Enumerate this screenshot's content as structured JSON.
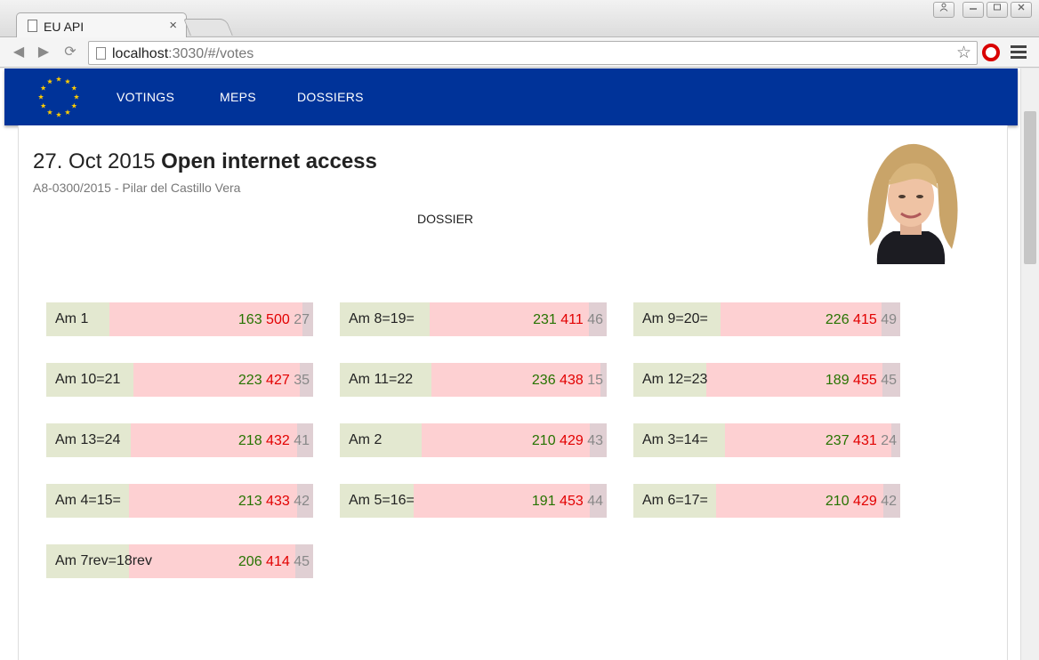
{
  "browser": {
    "tab_title": "EU API",
    "tab_close": "×",
    "url_host": "localhost",
    "url_rest": ":3030/#/votes"
  },
  "nav": {
    "items": [
      "VOTINGS",
      "MEPS",
      "DOSSIERS"
    ]
  },
  "vote": {
    "date": "27. Oct 2015",
    "title": "Open internet access",
    "subtitle": "A8-0300/2015 - Pilar del Castillo Vera",
    "dossier_link": "DOSSIER"
  },
  "colors": {
    "navbar": "#003399",
    "for": "#267300",
    "against": "#e20000",
    "abstain": "#888888"
  },
  "amendments": [
    {
      "label": "Am 1",
      "for": 163,
      "against": 500,
      "abstain": 27
    },
    {
      "label": "Am 8=19=",
      "for": 231,
      "against": 411,
      "abstain": 46
    },
    {
      "label": "Am 9=20=",
      "for": 226,
      "against": 415,
      "abstain": 49
    },
    {
      "label": "Am 10=21",
      "for": 223,
      "against": 427,
      "abstain": 35
    },
    {
      "label": "Am 11=22",
      "for": 236,
      "against": 438,
      "abstain": 15
    },
    {
      "label": "Am 12=23",
      "for": 189,
      "against": 455,
      "abstain": 45
    },
    {
      "label": "Am 13=24",
      "for": 218,
      "against": 432,
      "abstain": 41
    },
    {
      "label": "Am 2",
      "for": 210,
      "against": 429,
      "abstain": 43
    },
    {
      "label": "Am 3=14=",
      "for": 237,
      "against": 431,
      "abstain": 24
    },
    {
      "label": "Am 4=15=",
      "for": 213,
      "against": 433,
      "abstain": 42
    },
    {
      "label": "Am 5=16=",
      "for": 191,
      "against": 453,
      "abstain": 44
    },
    {
      "label": "Am 6=17=",
      "for": 210,
      "against": 429,
      "abstain": 42
    },
    {
      "label": "Am 7rev=18rev",
      "for": 206,
      "against": 414,
      "abstain": 45
    }
  ]
}
